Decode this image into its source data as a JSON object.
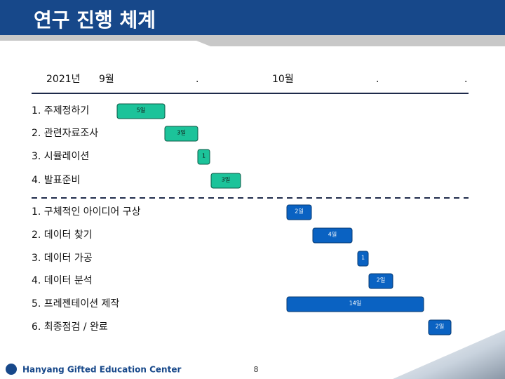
{
  "header": {
    "title": "연구 진행 체계"
  },
  "timeline": [
    "2021년",
    "9월",
    ".",
    "10월",
    ".",
    "."
  ],
  "groups": [
    {
      "tasks": [
        {
          "label": "1. 주제정하기",
          "duration": "5일"
        },
        {
          "label": "2. 관련자료조사",
          "duration": "3일"
        },
        {
          "label": "3. 시뮬레이션",
          "duration": "1"
        },
        {
          "label": "4. 발표준비",
          "duration": "3일"
        }
      ]
    },
    {
      "tasks": [
        {
          "label": "1. 구체적인 아이디어 구상",
          "duration": "2일"
        },
        {
          "label": "2. 데이터 찾기",
          "duration": "4일"
        },
        {
          "label": "3. 데이터 가공",
          "duration": "1"
        },
        {
          "label": "4. 데이터 분석",
          "duration": "2일"
        },
        {
          "label": "5. 프레젠테이션 제작",
          "duration": "14일"
        },
        {
          "label": "6. 최종점검 / 완료",
          "duration": "2일"
        }
      ]
    }
  ],
  "footer": {
    "org": "Hanyang Gifted Education Center",
    "page": "8"
  }
}
